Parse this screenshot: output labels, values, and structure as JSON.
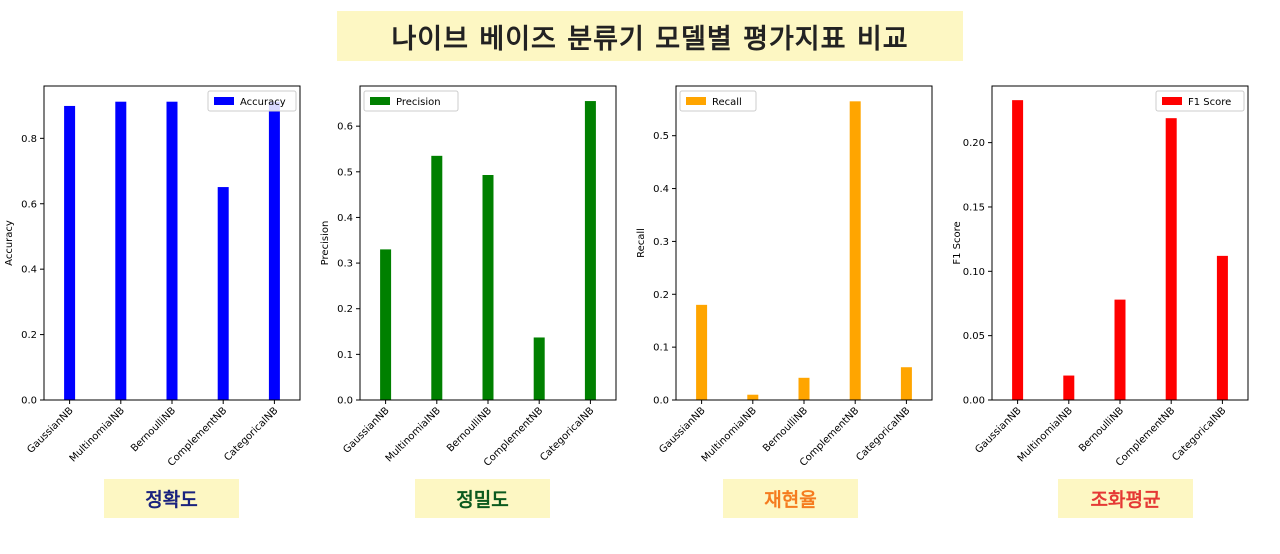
{
  "title": "나이브 베이즈 분류기 모델별 평가지표 비교",
  "chart_data": [
    {
      "type": "bar",
      "categories": [
        "GaussianNB",
        "MultinomialNB",
        "BernoulliNB",
        "ComplementNB",
        "CategoricalNB"
      ],
      "series": [
        {
          "name": "Accuracy",
          "values": [
            0.899,
            0.912,
            0.912,
            0.651,
            0.912
          ],
          "color": "#0000ff"
        }
      ],
      "ylabel": "Accuracy",
      "xlabel": "",
      "ylim": [
        0,
        0.96
      ],
      "yticks": [
        0.0,
        0.2,
        0.4,
        0.6,
        0.8
      ],
      "tick_labels": [
        "0.0",
        "0.2",
        "0.4",
        "0.6",
        "0.8"
      ],
      "legend": "top-right",
      "caption": "정확도",
      "caption_color": "#1a237e"
    },
    {
      "type": "bar",
      "categories": [
        "GaussianNB",
        "MultinomialNB",
        "BernoulliNB",
        "ComplementNB",
        "CategoricalNB"
      ],
      "series": [
        {
          "name": "Precision",
          "values": [
            0.33,
            0.535,
            0.493,
            0.137,
            0.655
          ],
          "color": "#008000"
        }
      ],
      "ylabel": "Precision",
      "xlabel": "",
      "ylim": [
        0,
        0.688
      ],
      "yticks": [
        0.0,
        0.1,
        0.2,
        0.3,
        0.4,
        0.5,
        0.6
      ],
      "tick_labels": [
        "0.0",
        "0.1",
        "0.2",
        "0.3",
        "0.4",
        "0.5",
        "0.6"
      ],
      "legend": "top-left",
      "caption": "정밀도",
      "caption_color": "#0b5a1e"
    },
    {
      "type": "bar",
      "categories": [
        "GaussianNB",
        "MultinomialNB",
        "BernoulliNB",
        "ComplementNB",
        "CategoricalNB"
      ],
      "series": [
        {
          "name": "Recall",
          "values": [
            0.18,
            0.01,
            0.042,
            0.565,
            0.062
          ],
          "color": "#ffa500"
        }
      ],
      "ylabel": "Recall",
      "xlabel": "",
      "ylim": [
        0,
        0.594
      ],
      "yticks": [
        0.0,
        0.1,
        0.2,
        0.3,
        0.4,
        0.5
      ],
      "tick_labels": [
        "0.0",
        "0.1",
        "0.2",
        "0.3",
        "0.4",
        "0.5"
      ],
      "legend": "top-left",
      "caption": "재현율",
      "caption_color": "#f57c1f"
    },
    {
      "type": "bar",
      "categories": [
        "GaussianNB",
        "MultinomialNB",
        "BernoulliNB",
        "ComplementNB",
        "CategoricalNB"
      ],
      "series": [
        {
          "name": "F1 Score",
          "values": [
            0.233,
            0.019,
            0.078,
            0.219,
            0.112
          ],
          "color": "#ff0000"
        }
      ],
      "ylabel": "F1 Score",
      "xlabel": "",
      "ylim": [
        0,
        0.244
      ],
      "yticks": [
        0.0,
        0.05,
        0.1,
        0.15,
        0.2
      ],
      "tick_labels": [
        "0.00",
        "0.05",
        "0.10",
        "0.15",
        "0.20"
      ],
      "legend": "top-right",
      "caption": "조화평균",
      "caption_color": "#e53935"
    }
  ]
}
